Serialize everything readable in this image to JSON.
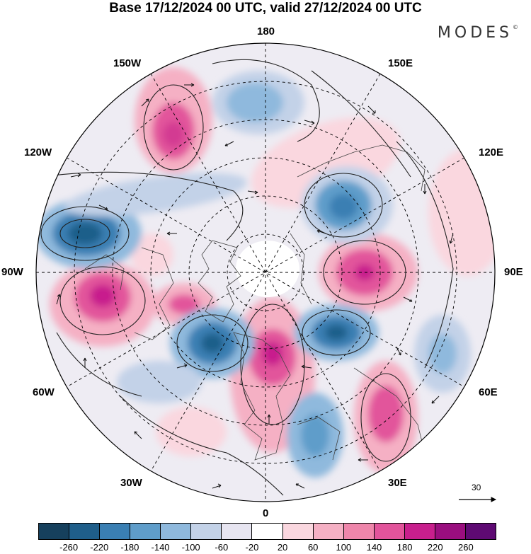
{
  "title": "Base 17/12/2024 00 UTC, valid 27/12/2024 00 UTC",
  "logo": "MODES",
  "logo_mark": "©",
  "longitude_labels": {
    "top": "180",
    "top_right": "150E",
    "right_upper": "120E",
    "right": "90E",
    "right_lower": "60E",
    "bottom_right": "30E",
    "bottom": "0",
    "bottom_left": "30W",
    "left_lower": "60W",
    "left": "90W",
    "left_upper": "120W",
    "top_left": "150W"
  },
  "reference_vector": {
    "label": "30"
  },
  "colorbar": {
    "colors": [
      "#16405d",
      "#1f5e8a",
      "#3a7fb3",
      "#5f9dca",
      "#8fb9dd",
      "#c3d2e8",
      "#e7e5f1",
      "#ffffff",
      "#fad7df",
      "#f5b0c4",
      "#ef86ab",
      "#e2549b",
      "#c81f8d",
      "#9a0e7f",
      "#5e0a73"
    ],
    "tick_labels": [
      "-260",
      "-220",
      "-180",
      "-140",
      "-100",
      "-60",
      "-20",
      "20",
      "60",
      "100",
      "140",
      "180",
      "220",
      "260"
    ]
  }
}
